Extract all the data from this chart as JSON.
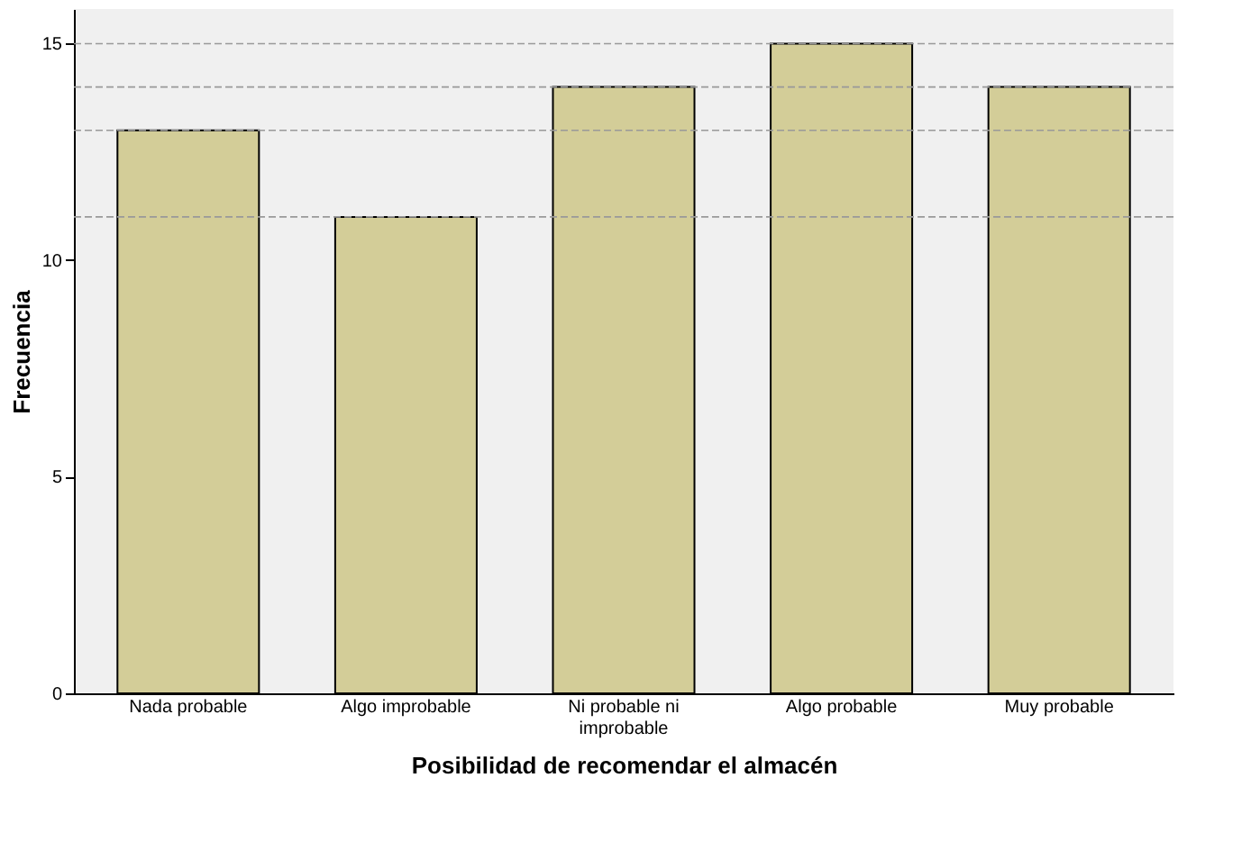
{
  "chart_data": {
    "type": "bar",
    "xlabel": "Posibilidad de recomendar el almacén",
    "ylabel": "Frecuencia",
    "categories": [
      "Nada probable",
      "Algo improbable",
      "Ni probable ni improbable",
      "Algo probable",
      "Muy probable"
    ],
    "values": [
      13,
      11,
      14,
      15,
      14
    ],
    "color": "#d3cd98",
    "ylim": [
      0,
      15.8
    ],
    "yticks": [
      0,
      5,
      10,
      15
    ],
    "grid": false,
    "ref_lines": [
      {
        "axis": "y",
        "value": 15,
        "line_style": "dashed",
        "color": "#999999"
      },
      {
        "axis": "y",
        "value": 14,
        "line_style": "dashed",
        "color": "#999999"
      },
      {
        "axis": "y",
        "value": 13,
        "line_style": "dashed",
        "color": "#999999"
      },
      {
        "axis": "y",
        "value": 11,
        "line_style": "dashed",
        "color": "#999999"
      }
    ]
  }
}
